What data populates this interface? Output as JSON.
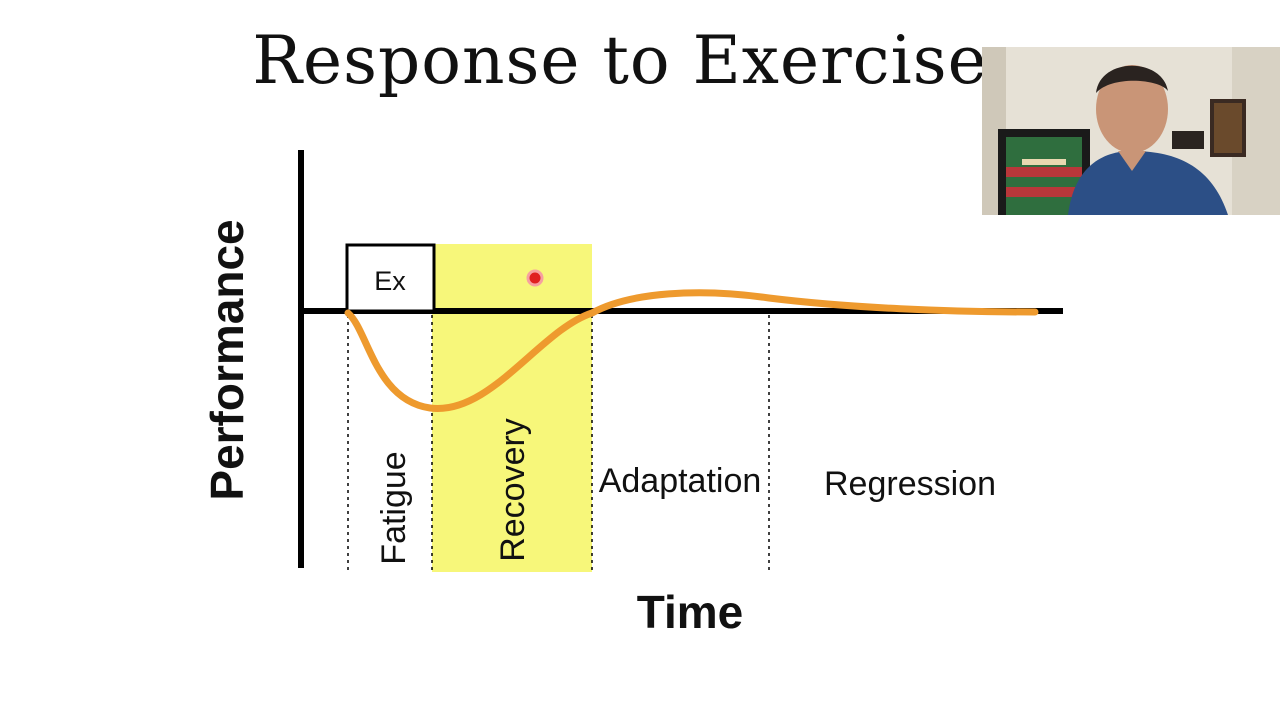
{
  "slide": {
    "title": "Response to Exercise"
  },
  "diagram": {
    "y_axis_label": "Performance",
    "x_axis_label": "Time",
    "exercise_box_label": "Ex",
    "phases": [
      {
        "label": "Fatigue",
        "orientation": "vertical"
      },
      {
        "label": "Recovery",
        "orientation": "vertical",
        "highlight": "#f7f77a"
      },
      {
        "label": "Adaptation",
        "orientation": "horizontal"
      },
      {
        "label": "Regression",
        "orientation": "horizontal"
      }
    ],
    "curve_color": "#ee9a2e",
    "pointer_color": "#e02020"
  },
  "webcam": {
    "description_icon": "presenter-video-icon"
  }
}
